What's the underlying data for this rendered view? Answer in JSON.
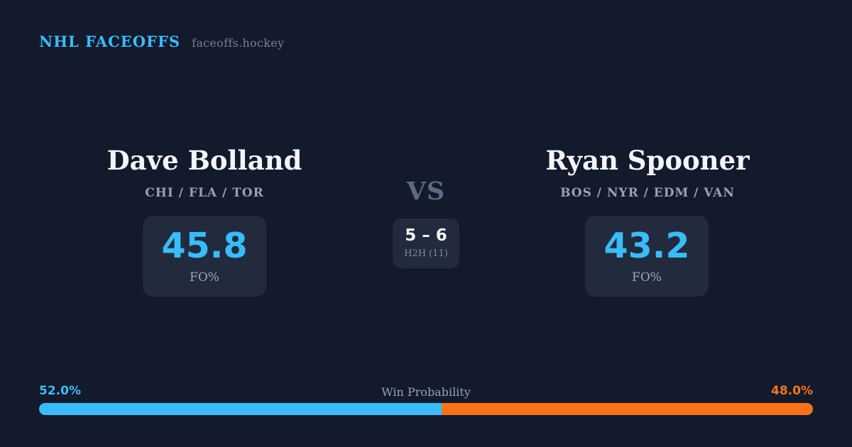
{
  "colors": {
    "background": "#121a2c",
    "card_background": "#212b3d",
    "accent_blue": "#38bdf8",
    "accent_orange": "#f97316",
    "text_primary": "#f2f5f9",
    "text_muted": "#94a3b8",
    "text_dim": "#5b6b85"
  },
  "header": {
    "title": "NHL FACEOFFS",
    "domain": "faceoffs.hockey"
  },
  "matchup": {
    "vs_label": "VS",
    "h2h": {
      "score": "5 – 6",
      "label": "H2H (11)"
    },
    "player_left": {
      "name": "Dave Bolland",
      "teams": "CHI / FLA / TOR",
      "fo_pct": "45.8",
      "stat_label": "FO%"
    },
    "player_right": {
      "name": "Ryan Spooner",
      "teams": "BOS / NYR / EDM / VAN",
      "fo_pct": "43.2",
      "stat_label": "FO%"
    }
  },
  "win_probability": {
    "label": "Win Probability",
    "left_pct_label": "52.0%",
    "right_pct_label": "48.0%",
    "left_value": 52.0,
    "right_value": 48.0
  }
}
